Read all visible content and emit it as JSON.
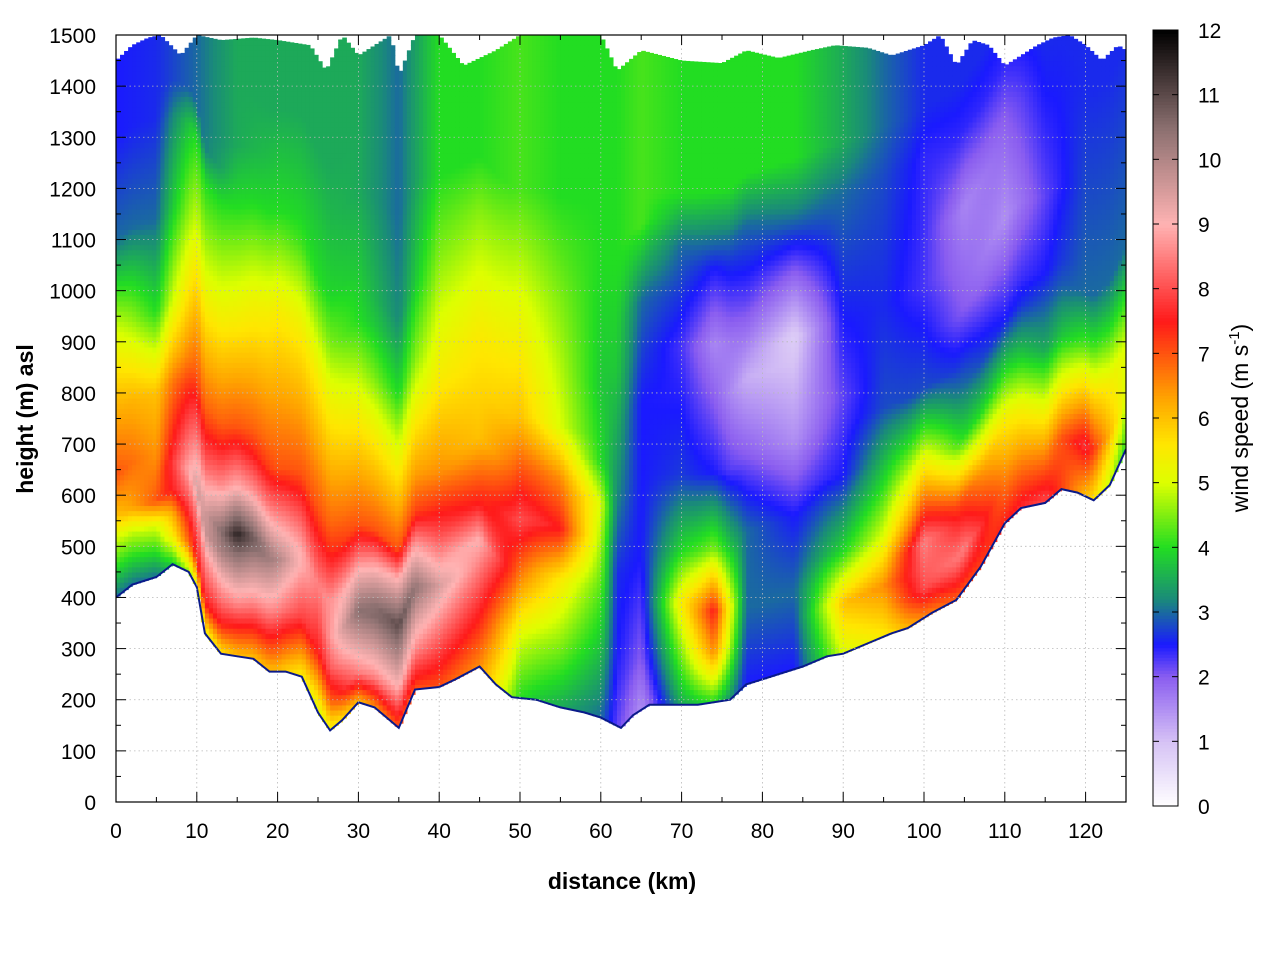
{
  "chart_data": {
    "type": "heatmap",
    "title": "",
    "xlabel": "distance (km)",
    "ylabel": "height (m) asl",
    "colorbar_label": "wind speed (m s-1)",
    "xlim": [
      0,
      125
    ],
    "ylim": [
      0,
      1500
    ],
    "zlim": [
      0,
      12
    ],
    "x_ticks": [
      0,
      10,
      20,
      30,
      40,
      50,
      60,
      70,
      80,
      90,
      100,
      110,
      120
    ],
    "y_ticks": [
      0,
      100,
      200,
      300,
      400,
      500,
      600,
      700,
      800,
      900,
      1000,
      1100,
      1200,
      1300,
      1400,
      1500
    ],
    "z_ticks": [
      0,
      1,
      2,
      3,
      4,
      5,
      6,
      7,
      8,
      9,
      10,
      11,
      12
    ],
    "grid": true,
    "colormap_stops": [
      {
        "v": 0,
        "color": "#ffffff"
      },
      {
        "v": 1,
        "color": "#d6c2f5"
      },
      {
        "v": 2,
        "color": "#8a5df0"
      },
      {
        "v": 2.5,
        "color": "#1a1aff"
      },
      {
        "v": 3.2,
        "color": "#1a8a7a"
      },
      {
        "v": 4,
        "color": "#22dd22"
      },
      {
        "v": 5,
        "color": "#ddff00"
      },
      {
        "v": 5.6,
        "color": "#ffe600"
      },
      {
        "v": 6.3,
        "color": "#ffa500"
      },
      {
        "v": 7.5,
        "color": "#ff1a1a"
      },
      {
        "v": 9,
        "color": "#ffb3b3"
      },
      {
        "v": 10.5,
        "color": "#8a6f6f"
      },
      {
        "v": 12,
        "color": "#000000"
      }
    ],
    "terrain_height": [
      [
        0,
        400
      ],
      [
        2,
        425
      ],
      [
        5,
        440
      ],
      [
        7,
        465
      ],
      [
        9,
        450
      ],
      [
        10,
        420
      ],
      [
        11,
        330
      ],
      [
        13,
        290
      ],
      [
        15,
        285
      ],
      [
        17,
        280
      ],
      [
        19,
        255
      ],
      [
        21,
        255
      ],
      [
        23,
        245
      ],
      [
        25,
        175
      ],
      [
        26.5,
        140
      ],
      [
        28,
        160
      ],
      [
        30,
        195
      ],
      [
        32,
        185
      ],
      [
        35,
        145
      ],
      [
        37,
        220
      ],
      [
        40,
        225
      ],
      [
        42,
        240
      ],
      [
        45,
        265
      ],
      [
        47,
        230
      ],
      [
        49,
        205
      ],
      [
        52,
        200
      ],
      [
        55,
        185
      ],
      [
        58,
        175
      ],
      [
        60,
        165
      ],
      [
        62.5,
        145
      ],
      [
        64,
        170
      ],
      [
        66,
        190
      ],
      [
        68,
        190
      ],
      [
        72,
        190
      ],
      [
        76,
        200
      ],
      [
        78,
        230
      ],
      [
        82,
        250
      ],
      [
        85,
        265
      ],
      [
        88,
        285
      ],
      [
        90,
        290
      ],
      [
        93,
        310
      ],
      [
        96,
        330
      ],
      [
        98,
        340
      ],
      [
        101,
        370
      ],
      [
        104,
        395
      ],
      [
        107,
        460
      ],
      [
        110,
        545
      ],
      [
        112,
        575
      ],
      [
        115,
        585
      ],
      [
        117,
        612
      ],
      [
        119,
        605
      ],
      [
        121,
        590
      ],
      [
        123,
        620
      ],
      [
        125,
        690
      ]
    ],
    "field_columns": [
      {
        "x": 0,
        "profile": [
          [
            0,
            3
          ],
          [
            120,
            5
          ],
          [
            160,
            6
          ],
          [
            240,
            7
          ],
          [
            400,
            6
          ],
          [
            520,
            5
          ],
          [
            700,
            3
          ],
          [
            900,
            2.5
          ]
        ]
      },
      {
        "x": 5,
        "profile": [
          [
            0,
            3
          ],
          [
            100,
            5
          ],
          [
            150,
            7
          ],
          [
            230,
            6.5
          ],
          [
            360,
            6
          ],
          [
            520,
            4
          ],
          [
            700,
            3
          ],
          [
            900,
            2.6
          ]
        ]
      },
      {
        "x": 10,
        "profile": [
          [
            0,
            5
          ],
          [
            60,
            7.5
          ],
          [
            150,
            8.5
          ],
          [
            200,
            9.5
          ],
          [
            420,
            7
          ],
          [
            700,
            5
          ],
          [
            880,
            4
          ],
          [
            950,
            3
          ]
        ]
      },
      {
        "x": 15,
        "profile": [
          [
            0,
            6
          ],
          [
            100,
            8.5
          ],
          [
            200,
            10.5
          ],
          [
            240,
            11.5
          ],
          [
            330,
            9
          ],
          [
            450,
            7
          ],
          [
            650,
            5.5
          ],
          [
            880,
            4
          ],
          [
            1000,
            3.5
          ]
        ]
      },
      {
        "x": 20,
        "profile": [
          [
            0,
            6
          ],
          [
            120,
            8.5
          ],
          [
            220,
            10
          ],
          [
            280,
            9
          ],
          [
            400,
            7
          ],
          [
            700,
            5.5
          ],
          [
            900,
            4
          ],
          [
            1100,
            3.5
          ]
        ]
      },
      {
        "x": 25,
        "profile": [
          [
            0,
            5
          ],
          [
            120,
            7.5
          ],
          [
            250,
            8.5
          ],
          [
            400,
            7
          ],
          [
            650,
            5.5
          ],
          [
            850,
            4
          ],
          [
            1100,
            3.5
          ]
        ]
      },
      {
        "x": 30,
        "profile": [
          [
            0,
            6
          ],
          [
            60,
            8.5
          ],
          [
            180,
            10.5
          ],
          [
            260,
            9
          ],
          [
            350,
            7
          ],
          [
            550,
            5.5
          ],
          [
            750,
            4
          ],
          [
            1000,
            3.5
          ]
        ]
      },
      {
        "x": 35,
        "profile": [
          [
            0,
            7
          ],
          [
            80,
            9
          ],
          [
            200,
            11
          ],
          [
            290,
            9
          ],
          [
            350,
            7
          ],
          [
            500,
            5.5
          ],
          [
            650,
            4
          ],
          [
            800,
            3.2
          ],
          [
            1000,
            3
          ]
        ]
      },
      {
        "x": 40,
        "profile": [
          [
            0,
            7
          ],
          [
            120,
            8.5
          ],
          [
            200,
            9.5
          ],
          [
            300,
            8
          ],
          [
            420,
            6.5
          ],
          [
            600,
            5.5
          ],
          [
            850,
            4.5
          ],
          [
            1000,
            4
          ]
        ]
      },
      {
        "x": 45,
        "profile": [
          [
            0,
            6.5
          ],
          [
            150,
            8
          ],
          [
            250,
            9
          ],
          [
            320,
            7.5
          ],
          [
            450,
            6
          ],
          [
            650,
            5.5
          ],
          [
            900,
            4.5
          ],
          [
            1000,
            4
          ]
        ]
      },
      {
        "x": 50,
        "profile": [
          [
            0,
            4
          ],
          [
            120,
            5
          ],
          [
            230,
            6.5
          ],
          [
            350,
            8
          ],
          [
            450,
            7
          ],
          [
            550,
            6
          ],
          [
            800,
            5
          ],
          [
            1000,
            4.2
          ]
        ]
      },
      {
        "x": 55,
        "profile": [
          [
            0,
            3.5
          ],
          [
            120,
            4.5
          ],
          [
            250,
            5.5
          ],
          [
            350,
            7.5
          ],
          [
            450,
            6.5
          ],
          [
            550,
            5
          ],
          [
            800,
            4.5
          ],
          [
            1000,
            4
          ]
        ]
      },
      {
        "x": 60,
        "profile": [
          [
            0,
            3
          ],
          [
            150,
            3.8
          ],
          [
            300,
            4.5
          ],
          [
            420,
            5
          ],
          [
            500,
            4
          ],
          [
            650,
            3.8
          ],
          [
            900,
            4
          ],
          [
            1000,
            4
          ]
        ]
      },
      {
        "x": 62,
        "profile": [
          [
            0,
            2.2
          ],
          [
            150,
            2.5
          ],
          [
            300,
            2.6
          ],
          [
            450,
            3.2
          ],
          [
            700,
            3.8
          ],
          [
            900,
            4
          ],
          [
            1000,
            4
          ]
        ]
      },
      {
        "x": 65,
        "profile": [
          [
            0,
            1.5
          ],
          [
            100,
            2
          ],
          [
            300,
            2.5
          ],
          [
            600,
            2.5
          ],
          [
            800,
            3
          ],
          [
            950,
            4.2
          ],
          [
            1000,
            4.2
          ]
        ]
      },
      {
        "x": 70,
        "profile": [
          [
            0,
            3.5
          ],
          [
            100,
            4.5
          ],
          [
            200,
            5.5
          ],
          [
            300,
            4
          ],
          [
            450,
            2.7
          ],
          [
            700,
            2.3
          ],
          [
            900,
            3
          ],
          [
            1000,
            4
          ]
        ]
      },
      {
        "x": 74,
        "profile": [
          [
            0,
            4
          ],
          [
            100,
            6.5
          ],
          [
            180,
            7.5
          ],
          [
            300,
            4.5
          ],
          [
            450,
            2.5
          ],
          [
            700,
            1.6
          ],
          [
            850,
            2.5
          ],
          [
            1000,
            4
          ]
        ]
      },
      {
        "x": 78,
        "profile": [
          [
            0,
            2.5
          ],
          [
            150,
            3
          ],
          [
            300,
            3
          ],
          [
            450,
            2
          ],
          [
            600,
            1.2
          ],
          [
            750,
            2.2
          ],
          [
            900,
            3
          ],
          [
            1000,
            4
          ]
        ]
      },
      {
        "x": 84,
        "profile": [
          [
            0,
            2.5
          ],
          [
            150,
            3
          ],
          [
            300,
            2.5
          ],
          [
            450,
            1.5
          ],
          [
            650,
            0.8
          ],
          [
            780,
            2
          ],
          [
            900,
            3.2
          ],
          [
            1000,
            4
          ]
        ]
      },
      {
        "x": 90,
        "profile": [
          [
            0,
            5
          ],
          [
            100,
            6
          ],
          [
            200,
            4
          ],
          [
            350,
            2.5
          ],
          [
            500,
            2.2
          ],
          [
            700,
            2.6
          ],
          [
            900,
            3
          ],
          [
            1000,
            3.5
          ]
        ]
      },
      {
        "x": 95,
        "profile": [
          [
            0,
            5.5
          ],
          [
            100,
            6.5
          ],
          [
            200,
            5
          ],
          [
            300,
            4
          ],
          [
            450,
            2.8
          ],
          [
            650,
            2.6
          ],
          [
            900,
            2.8
          ],
          [
            1000,
            3
          ]
        ]
      },
      {
        "x": 100,
        "profile": [
          [
            0,
            6.5
          ],
          [
            60,
            8
          ],
          [
            150,
            8.5
          ],
          [
            220,
            7
          ],
          [
            350,
            4.5
          ],
          [
            450,
            2.8
          ],
          [
            650,
            2.3
          ],
          [
            900,
            2.4
          ],
          [
            1000,
            2.6
          ]
        ]
      },
      {
        "x": 105,
        "profile": [
          [
            0,
            7
          ],
          [
            80,
            8.5
          ],
          [
            180,
            7
          ],
          [
            300,
            4
          ],
          [
            400,
            3
          ],
          [
            550,
            2
          ],
          [
            750,
            1.6
          ],
          [
            900,
            2.4
          ],
          [
            1000,
            2.6
          ]
        ]
      },
      {
        "x": 110,
        "profile": [
          [
            0,
            7.5
          ],
          [
            100,
            6.5
          ],
          [
            200,
            5.5
          ],
          [
            300,
            4
          ],
          [
            400,
            2.5
          ],
          [
            600,
            1.5
          ],
          [
            800,
            2
          ],
          [
            900,
            2.4
          ],
          [
            1000,
            2.6
          ]
        ]
      },
      {
        "x": 115,
        "profile": [
          [
            0,
            8
          ],
          [
            100,
            6.5
          ],
          [
            200,
            5
          ],
          [
            300,
            3.5
          ],
          [
            450,
            2.5
          ],
          [
            600,
            2.2
          ],
          [
            800,
            2.5
          ],
          [
            900,
            2.6
          ]
        ]
      },
      {
        "x": 120,
        "profile": [
          [
            0,
            6
          ],
          [
            100,
            7.8
          ],
          [
            200,
            6
          ],
          [
            300,
            4.2
          ],
          [
            400,
            3
          ],
          [
            600,
            2.8
          ],
          [
            800,
            2.6
          ]
        ]
      },
      {
        "x": 125,
        "profile": [
          [
            0,
            4
          ],
          [
            100,
            5
          ],
          [
            200,
            5
          ],
          [
            300,
            4
          ],
          [
            400,
            3
          ],
          [
            600,
            2.8
          ],
          [
            800,
            2.6
          ]
        ]
      }
    ],
    "top_boundary": [
      [
        0,
        1450
      ],
      [
        2,
        1480
      ],
      [
        4,
        1495
      ],
      [
        5.5,
        1500
      ],
      [
        8,
        1460
      ],
      [
        10,
        1500
      ],
      [
        13,
        1490
      ],
      [
        17,
        1495
      ],
      [
        20,
        1490
      ],
      [
        24,
        1480
      ],
      [
        26,
        1430
      ],
      [
        28,
        1500
      ],
      [
        30,
        1460
      ],
      [
        34,
        1500
      ],
      [
        35,
        1420
      ],
      [
        37,
        1500
      ],
      [
        40,
        1500
      ],
      [
        43,
        1440
      ],
      [
        47,
        1470
      ],
      [
        50,
        1500
      ],
      [
        55,
        1500
      ],
      [
        60,
        1500
      ],
      [
        62,
        1430
      ],
      [
        65,
        1470
      ],
      [
        70,
        1450
      ],
      [
        75,
        1445
      ],
      [
        78,
        1470
      ],
      [
        82,
        1455
      ],
      [
        86,
        1470
      ],
      [
        89,
        1480
      ],
      [
        93,
        1475
      ],
      [
        96,
        1460
      ],
      [
        98,
        1470
      ],
      [
        100,
        1480
      ],
      [
        102,
        1500
      ],
      [
        104,
        1440
      ],
      [
        106,
        1490
      ],
      [
        108,
        1480
      ],
      [
        110,
        1440
      ],
      [
        112,
        1460
      ],
      [
        114,
        1480
      ],
      [
        116,
        1495
      ],
      [
        118,
        1500
      ],
      [
        120,
        1480
      ],
      [
        122,
        1450
      ],
      [
        124,
        1480
      ],
      [
        125,
        1470
      ]
    ]
  }
}
